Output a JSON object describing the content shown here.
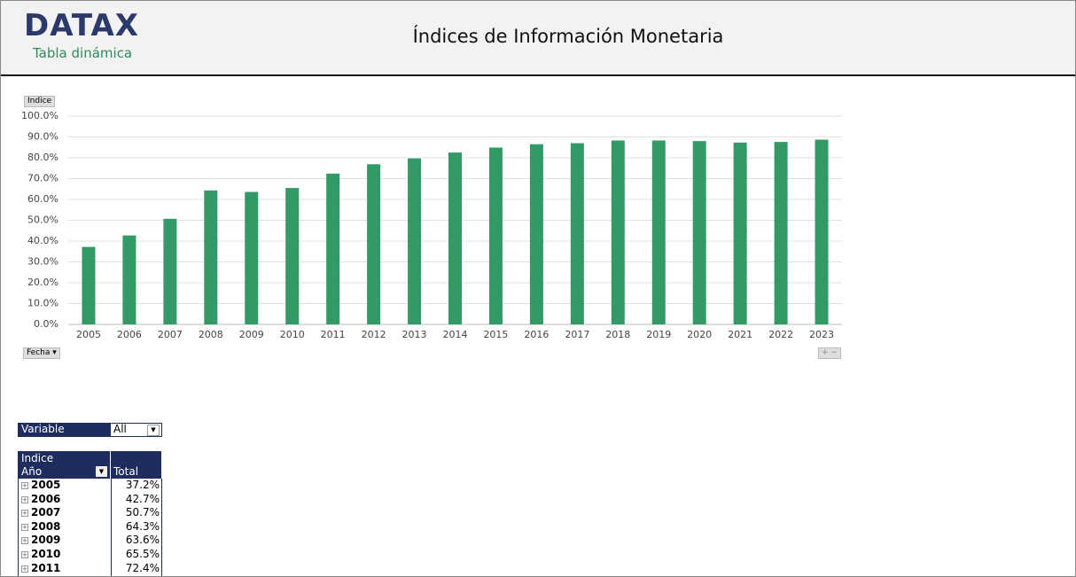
{
  "header": {
    "logo": "DATAX",
    "subtitle": "Tabla dinámica",
    "title": "Índices de Información Monetaria"
  },
  "chart_data": {
    "type": "bar",
    "field_button": "Indice",
    "axis_button": "Fecha",
    "categories": [
      "2005",
      "2006",
      "2007",
      "2008",
      "2009",
      "2010",
      "2011",
      "2012",
      "2013",
      "2014",
      "2015",
      "2016",
      "2017",
      "2018",
      "2019",
      "2020",
      "2021",
      "2022",
      "2023"
    ],
    "values": [
      37.2,
      42.7,
      50.7,
      64.3,
      63.6,
      65.5,
      72.4,
      76.9,
      79.7,
      82.5,
      84.9,
      86.5,
      87.0,
      88.3,
      88.3,
      88.0,
      87.3,
      87.6,
      88.7
    ],
    "color": "#339966",
    "ylim": [
      0,
      100
    ],
    "yticks": [
      {
        "value": 0,
        "label": "0.0%"
      },
      {
        "value": 10,
        "label": "10.0%"
      },
      {
        "value": 20,
        "label": "20.0%"
      },
      {
        "value": 30,
        "label": "30.0%"
      },
      {
        "value": 40,
        "label": "40.0%"
      },
      {
        "value": 50,
        "label": "50.0%"
      },
      {
        "value": 60,
        "label": "60.0%"
      },
      {
        "value": 70,
        "label": "70.0%"
      },
      {
        "value": 80,
        "label": "80.0%"
      },
      {
        "value": 90,
        "label": "90.0%"
      },
      {
        "value": 100,
        "label": "100.0%"
      }
    ],
    "grid": true
  },
  "filter": {
    "label": "Variable",
    "value": "All"
  },
  "pivot": {
    "values_label": "Indice",
    "row_label": "Año",
    "column_label": "Total",
    "rows": [
      [
        "2005",
        "37.2%"
      ],
      [
        "2006",
        "42.7%"
      ],
      [
        "2007",
        "50.7%"
      ],
      [
        "2008",
        "64.3%"
      ],
      [
        "2009",
        "63.6%"
      ],
      [
        "2010",
        "65.5%"
      ],
      [
        "2011",
        "72.4%"
      ]
    ]
  }
}
